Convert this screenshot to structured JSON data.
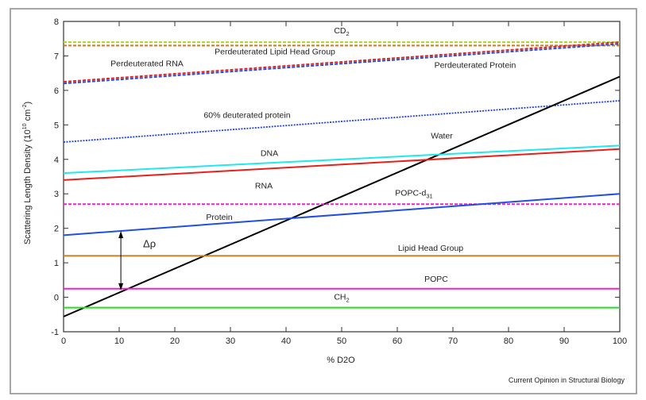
{
  "chart_data": {
    "type": "line",
    "title": "",
    "xlabel": "% D2O",
    "ylabel": "Scattering Length Density (10^10 cm^-2)",
    "xlim": [
      0,
      100
    ],
    "ylim": [
      -1,
      8
    ],
    "xticks": [
      0,
      10,
      20,
      30,
      40,
      50,
      60,
      70,
      80,
      90,
      100
    ],
    "yticks": [
      -1,
      0,
      1,
      2,
      3,
      4,
      5,
      6,
      7,
      8
    ],
    "grid": false,
    "series": [
      {
        "name": "CD2",
        "x": [
          0,
          100
        ],
        "y": [
          7.4,
          7.4
        ],
        "color": "#a8d820",
        "style": "dashed"
      },
      {
        "name": "Perdeuterated Lipid Head Group",
        "x": [
          0,
          100
        ],
        "y": [
          7.3,
          7.3
        ],
        "color": "#d07a10",
        "style": "dashed"
      },
      {
        "name": "Perdeuterated RNA",
        "x": [
          0,
          100
        ],
        "y": [
          6.25,
          7.4
        ],
        "color": "#e8201c",
        "style": "dashed"
      },
      {
        "name": "Perdeuterated Protein",
        "x": [
          0,
          100
        ],
        "y": [
          6.2,
          7.35
        ],
        "color": "#2050e0",
        "style": "dashed"
      },
      {
        "name": "60% deuterated protein",
        "x": [
          0,
          100
        ],
        "y": [
          4.5,
          5.7
        ],
        "color": "#2040e0",
        "style": "dotted"
      },
      {
        "name": "Water",
        "x": [
          0,
          100
        ],
        "y": [
          -0.56,
          6.4
        ],
        "color": "#000000",
        "style": "solid"
      },
      {
        "name": "DNA",
        "x": [
          0,
          100
        ],
        "y": [
          3.6,
          4.4
        ],
        "color": "#20e8f0",
        "style": "solid"
      },
      {
        "name": "RNA",
        "x": [
          0,
          100
        ],
        "y": [
          3.4,
          4.3
        ],
        "color": "#e8201c",
        "style": "solid"
      },
      {
        "name": "POPC-d31",
        "x": [
          0,
          100
        ],
        "y": [
          2.7,
          2.7
        ],
        "color": "#f020d0",
        "style": "dashed"
      },
      {
        "name": "Protein",
        "x": [
          0,
          100
        ],
        "y": [
          1.8,
          3.0
        ],
        "color": "#2050e0",
        "style": "solid"
      },
      {
        "name": "Lipid Head Group",
        "x": [
          0,
          100
        ],
        "y": [
          1.2,
          1.2
        ],
        "color": "#c88020",
        "style": "solid"
      },
      {
        "name": "POPC",
        "x": [
          0,
          100
        ],
        "y": [
          0.25,
          0.25
        ],
        "color": "#f020d0",
        "style": "solid"
      },
      {
        "name": "CH2",
        "x": [
          0,
          100
        ],
        "y": [
          -0.3,
          -0.3
        ],
        "color": "#20e020",
        "style": "solid"
      }
    ],
    "annotations": [
      {
        "text": "Δρ",
        "x": 10.3,
        "y_from": 1.92,
        "y_to": 0.2
      }
    ],
    "credit": "Current Opinion in Structural Biology"
  }
}
